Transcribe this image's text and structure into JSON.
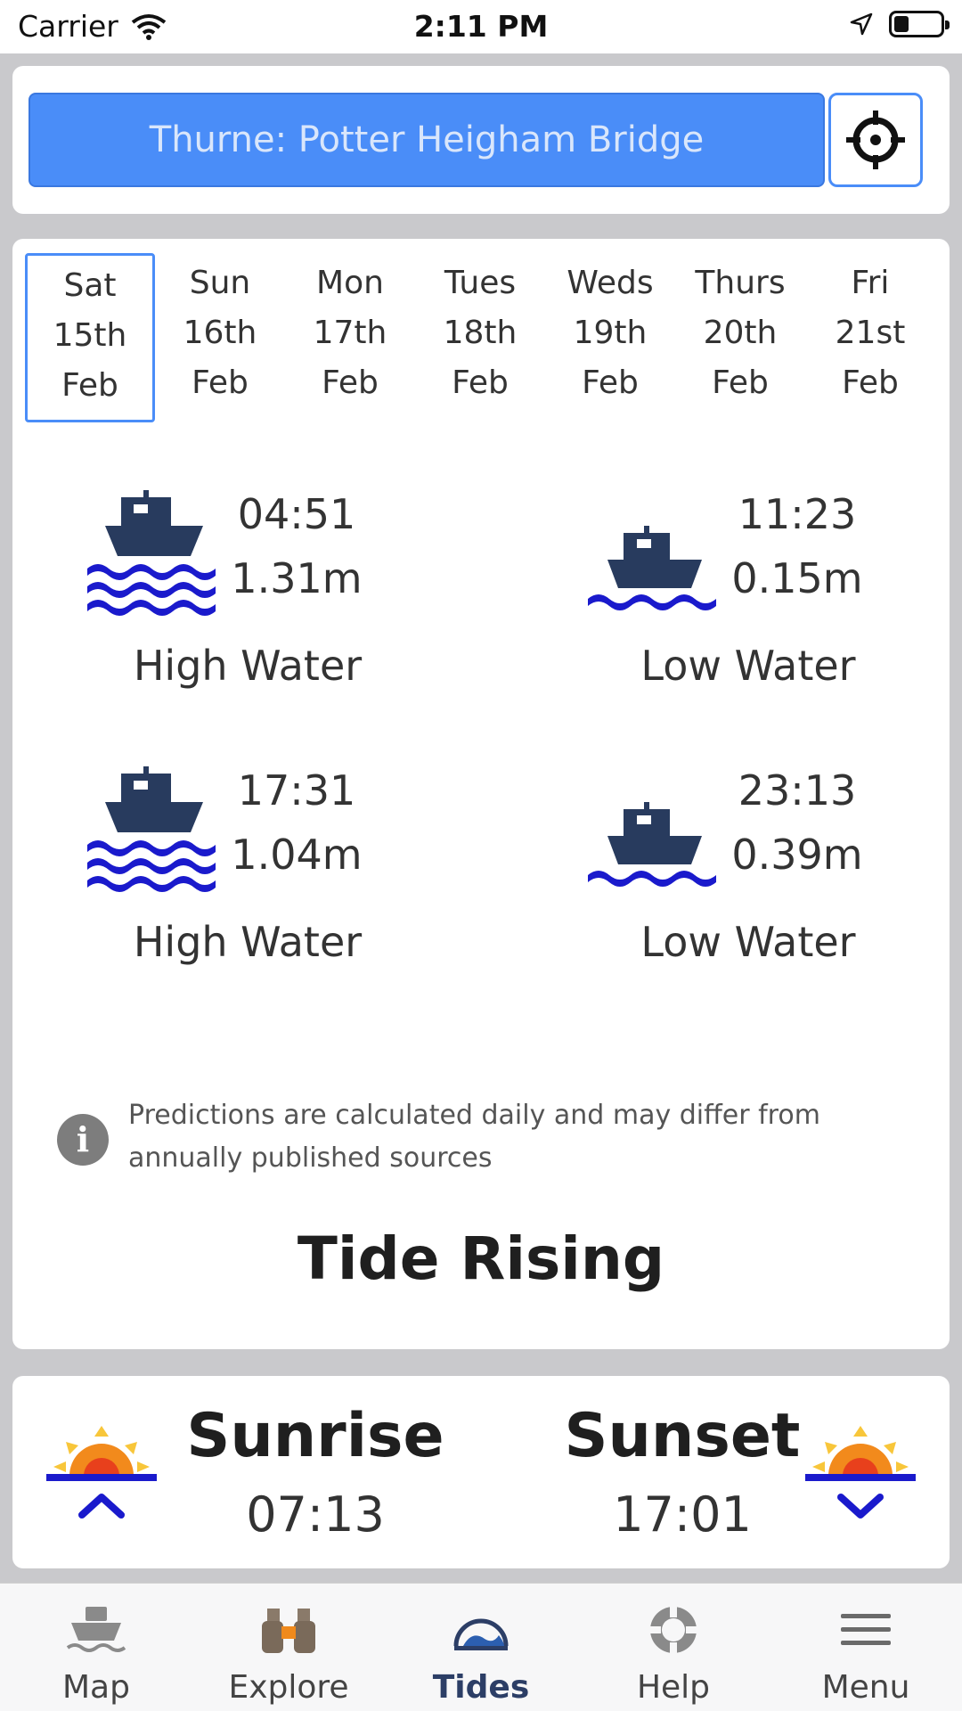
{
  "status_bar": {
    "carrier": "Carrier",
    "time": "2:11 PM",
    "battery_level": 0.3
  },
  "location": {
    "name": "Thurne: Potter Heigham Bridge"
  },
  "days": [
    {
      "day": "Sat",
      "date": "15th",
      "month": "Feb",
      "selected": true
    },
    {
      "day": "Sun",
      "date": "16th",
      "month": "Feb"
    },
    {
      "day": "Mon",
      "date": "17th",
      "month": "Feb"
    },
    {
      "day": "Tues",
      "date": "18th",
      "month": "Feb"
    },
    {
      "day": "Weds",
      "date": "19th",
      "month": "Feb"
    },
    {
      "day": "Thurs",
      "date": "20th",
      "month": "Feb"
    },
    {
      "day": "Fri",
      "date": "21st",
      "month": "Feb"
    }
  ],
  "tides": [
    {
      "time": "04:51",
      "height": "1.31m",
      "label": "High Water",
      "icon": "high-water-boat-icon"
    },
    {
      "time": "11:23",
      "height": "0.15m",
      "label": "Low Water",
      "icon": "low-water-boat-icon"
    },
    {
      "time": "17:31",
      "height": "1.04m",
      "label": "High Water",
      "icon": "high-water-boat-icon"
    },
    {
      "time": "23:13",
      "height": "0.39m",
      "label": "Low Water",
      "icon": "low-water-boat-icon"
    }
  ],
  "info": {
    "icon": "info-icon",
    "text": "Predictions are calculated daily and may differ from annually published sources"
  },
  "tide_status": "Tide Rising",
  "sun": {
    "sunrise_label": "Sunrise",
    "sunrise_time": "07:13",
    "sunset_label": "Sunset",
    "sunset_time": "17:01"
  },
  "tabs": [
    {
      "label": "Map",
      "icon": "boat-icon"
    },
    {
      "label": "Explore",
      "icon": "binoculars-icon"
    },
    {
      "label": "Tides",
      "icon": "tides-icon",
      "active": true
    },
    {
      "label": "Help",
      "icon": "lifebuoy-icon"
    },
    {
      "label": "Menu",
      "icon": "hamburger-menu-icon"
    }
  ],
  "colors": {
    "accent": "#4a8df8",
    "boat": "#283b5e",
    "water": "#1a1acc",
    "sun_orange": "#f28a1c",
    "sun_red": "#e8401c",
    "sun_yellow": "#f8c63a"
  }
}
